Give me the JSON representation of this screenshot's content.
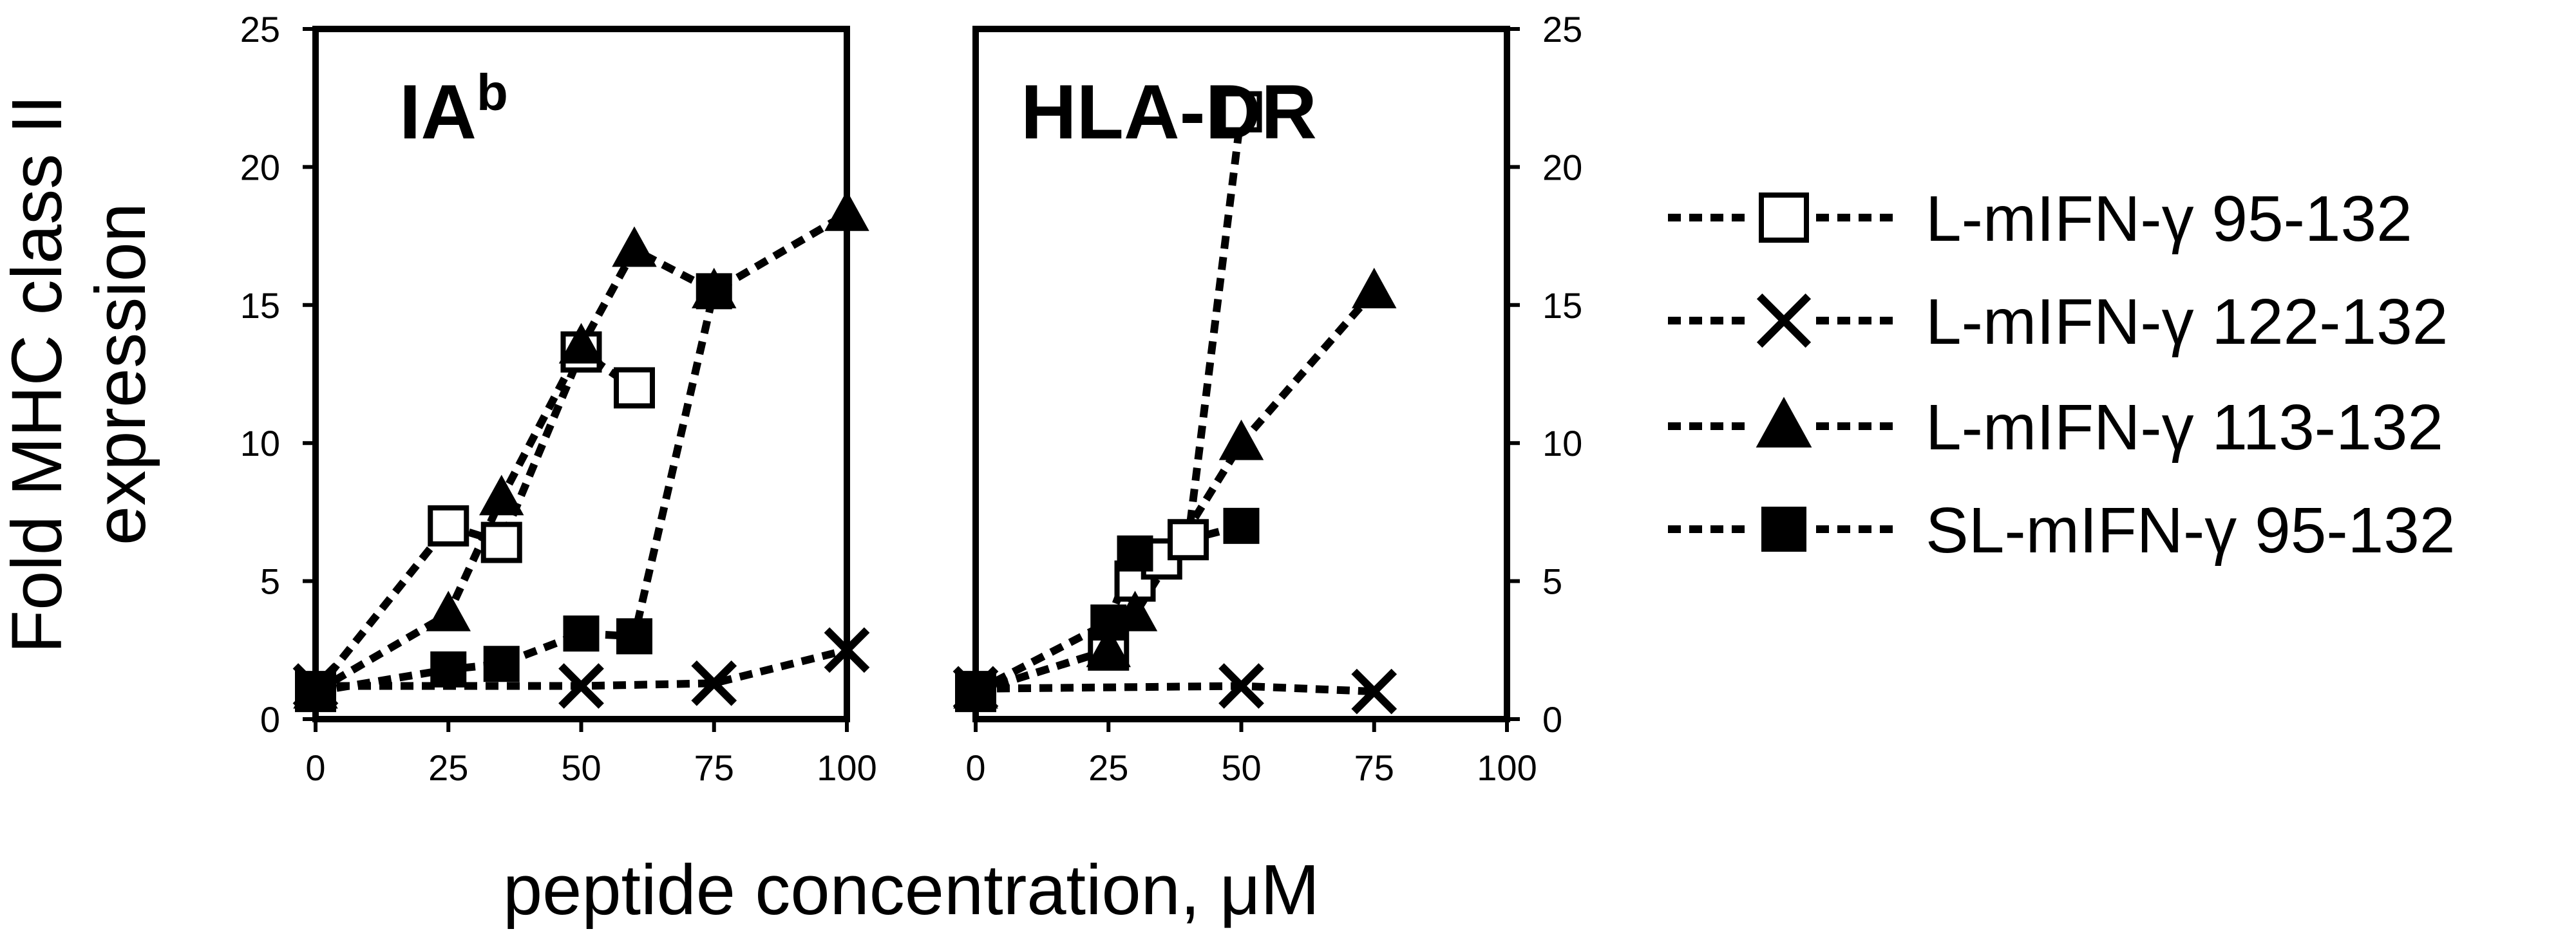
{
  "chart_data": [
    {
      "type": "line",
      "title": "IA",
      "title_sup": "b",
      "ylabel_line1": "Fold MHC class II",
      "ylabel_line2": "expression",
      "xlabel": "peptide concentration, μM",
      "xlim": [
        0,
        100
      ],
      "ylim": [
        0,
        25
      ],
      "xticks": [
        "0",
        "25",
        "50",
        "75",
        "100"
      ],
      "yticks": [
        "0",
        "5",
        "10",
        "15",
        "20",
        "25"
      ],
      "yaxis": "left",
      "grid": false,
      "series": [
        {
          "name": "L-mIFN-γ 95-132",
          "marker": "open-square",
          "x": [
            0,
            25,
            35,
            50,
            60
          ],
          "y": [
            1,
            7,
            6.4,
            13.3,
            12
          ]
        },
        {
          "name": "L-mIFN-γ 122-132",
          "marker": "cross",
          "x": [
            0,
            50,
            75,
            100
          ],
          "y": [
            1.2,
            1.2,
            1.3,
            2.5
          ]
        },
        {
          "name": "L-mIFN-γ 113-132",
          "marker": "filled-triangle",
          "x": [
            0,
            25,
            35,
            50,
            60,
            75,
            100
          ],
          "y": [
            1,
            3.8,
            8,
            13.5,
            17,
            15.5,
            18.3
          ]
        },
        {
          "name": "SL-mIFN-γ 95-132",
          "marker": "filled-square",
          "x": [
            0,
            25,
            35,
            50,
            60,
            75
          ],
          "y": [
            1,
            1.8,
            2,
            3.1,
            3,
            15.5
          ]
        }
      ]
    },
    {
      "type": "line",
      "title": "HLA-DR",
      "xlim": [
        0,
        100
      ],
      "ylim": [
        0,
        25
      ],
      "xticks": [
        "0",
        "25",
        "50",
        "75",
        "100"
      ],
      "yticks": [
        "0",
        "5",
        "10",
        "15",
        "20",
        "25"
      ],
      "yaxis": "right",
      "grid": false,
      "series": [
        {
          "name": "L-mIFN-γ 95-132",
          "marker": "open-square",
          "x": [
            0,
            25,
            30,
            35,
            40,
            50
          ],
          "y": [
            1,
            2.5,
            5,
            5.8,
            6.5,
            22
          ]
        },
        {
          "name": "L-mIFN-γ 122-132",
          "marker": "cross",
          "x": [
            0,
            50,
            75
          ],
          "y": [
            1.1,
            1.2,
            1.0
          ]
        },
        {
          "name": "L-mIFN-γ 113-132",
          "marker": "filled-triangle",
          "x": [
            0,
            25,
            30,
            50,
            75
          ],
          "y": [
            1,
            2.5,
            3.8,
            10,
            15.5
          ]
        },
        {
          "name": "SL-mIFN-γ 95-132",
          "marker": "filled-square",
          "x": [
            0,
            25,
            30,
            50
          ],
          "y": [
            1,
            3.5,
            6,
            7
          ]
        }
      ]
    }
  ],
  "legend": {
    "placement": "right",
    "entries": [
      {
        "label": "L-mIFN-γ 95-132",
        "marker": "open-square"
      },
      {
        "label": "L-mIFN-γ 122-132",
        "marker": "cross"
      },
      {
        "label": "L-mIFN-γ 113-132",
        "marker": "filled-triangle"
      },
      {
        "label": "SL-mIFN-γ 95-132",
        "marker": "filled-square"
      }
    ]
  }
}
